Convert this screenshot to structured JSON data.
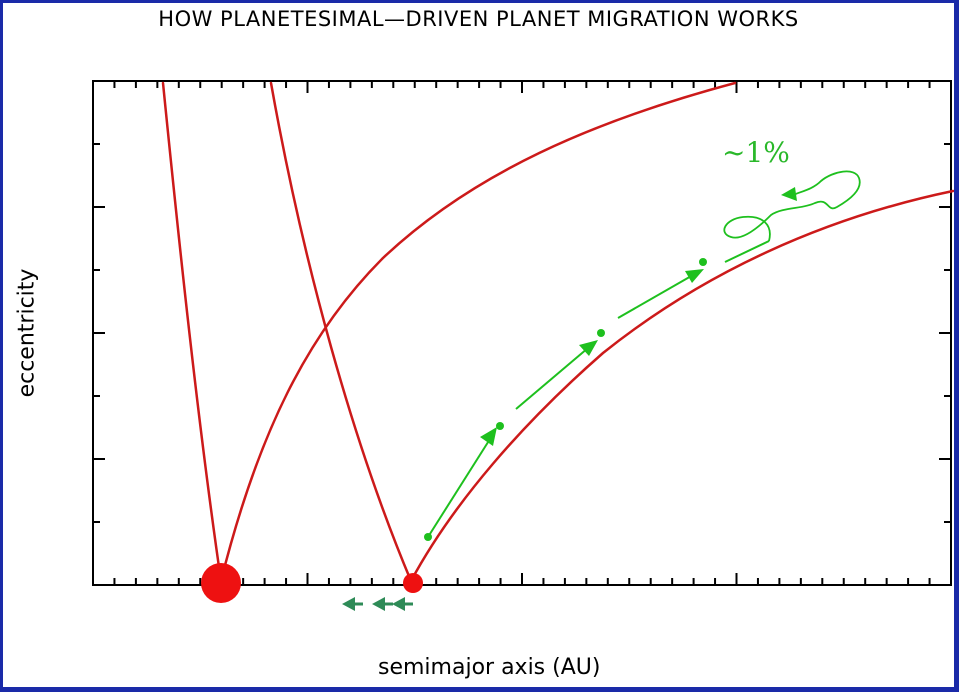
{
  "title": "HOW PLANETESIMAL—DRIVEN PLANET MIGRATION WORKS",
  "xlabel": "semimajor axis (AU)",
  "ylabel": "eccentricity",
  "annotation": "~1%",
  "colors": {
    "frame": "#1a2aa8",
    "curves": "#cc1a1a",
    "planets": "#ee1111",
    "migration_path": "#1ec01e",
    "migration_arrows": "#2e8b57"
  }
}
